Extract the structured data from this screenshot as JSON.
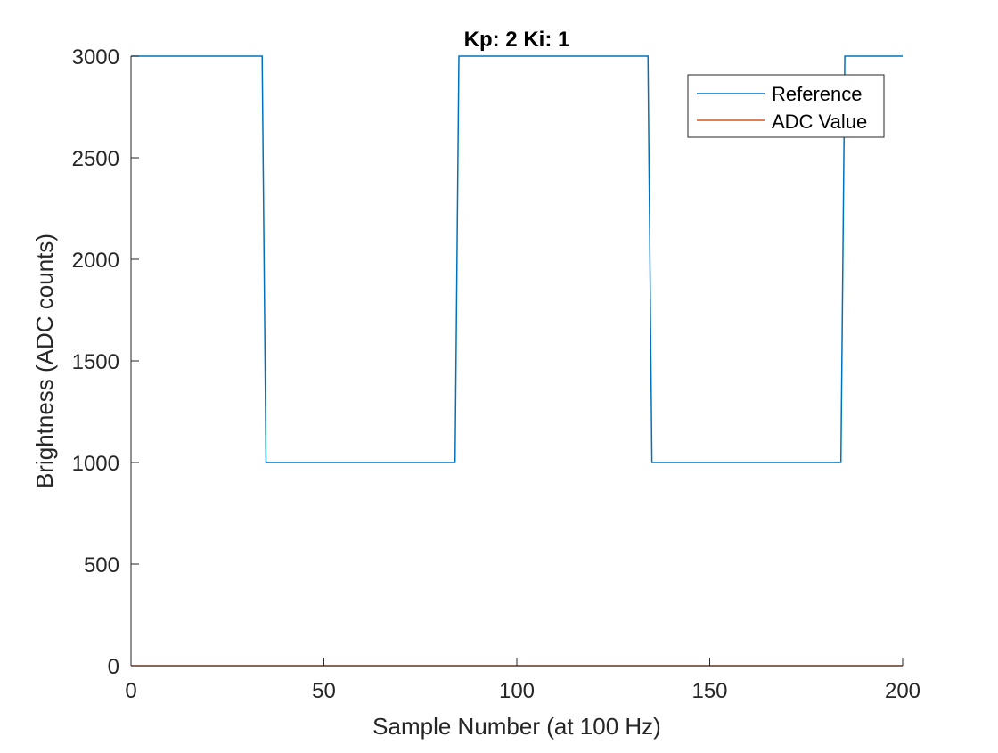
{
  "chart_data": {
    "type": "line",
    "title": "Kp: 2  Ki: 1",
    "xlabel": "Sample Number (at 100 Hz)",
    "ylabel": "Brightness (ADC counts)",
    "xlim": [
      0,
      200
    ],
    "ylim": [
      0,
      3000
    ],
    "xticks": [
      0,
      50,
      100,
      150,
      200
    ],
    "yticks": [
      0,
      500,
      1000,
      1500,
      2000,
      2500,
      3000
    ],
    "grid": false,
    "legend_position": "top-right",
    "series": [
      {
        "name": "Reference",
        "color": "#0072BD",
        "x": [
          0,
          34,
          35,
          84,
          85,
          134,
          135,
          184,
          185,
          200
        ],
        "y": [
          3000,
          3000,
          1000,
          1000,
          3000,
          3000,
          1000,
          1000,
          3000,
          3000
        ]
      },
      {
        "name": "ADC Value",
        "color": "#D95319",
        "x": [
          0,
          200
        ],
        "y": [
          0,
          0
        ]
      }
    ]
  }
}
